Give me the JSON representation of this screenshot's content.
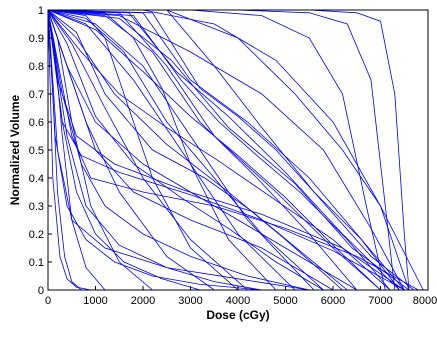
{
  "chart_data": {
    "type": "line",
    "title": "",
    "xlabel": "Dose (cGy)",
    "ylabel": "Normalized Volume",
    "xlim": [
      0,
      8000
    ],
    "ylim": [
      0,
      1
    ],
    "x_ticks": [
      "0",
      "1000",
      "2000",
      "3000",
      "4000",
      "5000",
      "6000",
      "7000",
      "8000"
    ],
    "y_ticks": [
      "0",
      "0.1",
      "0.2",
      "0.3",
      "0.4",
      "0.5",
      "0.6",
      "0.7",
      "0.8",
      "0.9",
      "1"
    ],
    "line_color": "#0000ff",
    "grid": false,
    "series": [
      {
        "x": [
          0,
          150,
          300,
          500,
          800,
          1200
        ],
        "y": [
          1,
          0.85,
          0.55,
          0.25,
          0.08,
          0
        ]
      },
      {
        "x": [
          0,
          100,
          200,
          350,
          500,
          700
        ],
        "y": [
          1,
          0.7,
          0.35,
          0.12,
          0.03,
          0
        ]
      },
      {
        "x": [
          0,
          200,
          500,
          900,
          1500,
          2200
        ],
        "y": [
          1,
          0.9,
          0.6,
          0.3,
          0.1,
          0
        ]
      },
      {
        "x": [
          0,
          300,
          800,
          1500,
          2500,
          3500
        ],
        "y": [
          1,
          0.85,
          0.6,
          0.35,
          0.12,
          0
        ]
      },
      {
        "x": [
          0,
          500,
          1200,
          2000,
          3000,
          4200
        ],
        "y": [
          1,
          0.88,
          0.65,
          0.4,
          0.18,
          0
        ]
      },
      {
        "x": [
          0,
          800,
          1800,
          2800,
          4000,
          5200
        ],
        "y": [
          1,
          0.95,
          0.75,
          0.5,
          0.2,
          0
        ]
      },
      {
        "x": [
          0,
          1000,
          2000,
          3000,
          4200,
          5600
        ],
        "y": [
          1,
          0.95,
          0.8,
          0.55,
          0.25,
          0
        ]
      },
      {
        "x": [
          0,
          800,
          1600,
          2500,
          3500,
          4500,
          5800
        ],
        "y": [
          1,
          0.97,
          0.85,
          0.6,
          0.4,
          0.2,
          0
        ]
      },
      {
        "x": [
          0,
          1200,
          2200,
          3200,
          4400,
          5500,
          6500
        ],
        "y": [
          1,
          0.98,
          0.85,
          0.6,
          0.4,
          0.2,
          0
        ]
      },
      {
        "x": [
          0,
          1500,
          2500,
          3500,
          4800,
          6000,
          7000
        ],
        "y": [
          1,
          0.99,
          0.8,
          0.55,
          0.35,
          0.15,
          0
        ]
      },
      {
        "x": [
          0,
          1700,
          2700,
          3800,
          5000,
          6200,
          7400
        ],
        "y": [
          1,
          0.99,
          0.78,
          0.62,
          0.42,
          0.2,
          0
        ]
      },
      {
        "x": [
          0,
          2000,
          3000,
          4200,
          5500,
          6500,
          7500
        ],
        "y": [
          1,
          0.99,
          0.75,
          0.6,
          0.4,
          0.2,
          0
        ]
      },
      {
        "x": [
          0,
          1500,
          2600,
          3800,
          5200,
          6400,
          7600
        ],
        "y": [
          1,
          0.97,
          0.82,
          0.58,
          0.38,
          0.15,
          0
        ]
      },
      {
        "x": [
          0,
          2500,
          3500,
          4500,
          5600,
          6800,
          7700
        ],
        "y": [
          1,
          1,
          0.8,
          0.58,
          0.35,
          0.12,
          0
        ]
      },
      {
        "x": [
          0,
          1000,
          2000,
          3000,
          4000,
          5000,
          6000,
          7000
        ],
        "y": [
          1,
          0.93,
          0.78,
          0.62,
          0.48,
          0.33,
          0.16,
          0
        ]
      },
      {
        "x": [
          0,
          600,
          1400,
          2500,
          3800,
          5000,
          6200
        ],
        "y": [
          1,
          0.9,
          0.7,
          0.52,
          0.35,
          0.18,
          0
        ]
      },
      {
        "x": [
          0,
          400,
          1000,
          2000,
          3500,
          5000,
          6500
        ],
        "y": [
          1,
          0.8,
          0.6,
          0.45,
          0.3,
          0.15,
          0
        ]
      },
      {
        "x": [
          0,
          300,
          600,
          1000,
          1600,
          2400,
          3200
        ],
        "y": [
          1,
          0.6,
          0.35,
          0.2,
          0.1,
          0.04,
          0
        ]
      },
      {
        "x": [
          0,
          200,
          500,
          1200,
          2500,
          4000,
          5500
        ],
        "y": [
          1,
          0.5,
          0.25,
          0.15,
          0.08,
          0.04,
          0
        ]
      },
      {
        "x": [
          0,
          500,
          1000,
          1800,
          3000,
          4500,
          6000
        ],
        "y": [
          1,
          0.75,
          0.5,
          0.35,
          0.25,
          0.15,
          0
        ]
      },
      {
        "x": [
          0,
          3000,
          4500,
          5500,
          6200,
          6700,
          7100
        ],
        "y": [
          1,
          1,
          0.98,
          0.9,
          0.7,
          0.3,
          0
        ]
      },
      {
        "x": [
          0,
          4000,
          5500,
          6300,
          6800,
          7100,
          7300
        ],
        "y": [
          1,
          1,
          0.99,
          0.95,
          0.75,
          0.3,
          0
        ]
      },
      {
        "x": [
          0,
          5500,
          6500,
          7000,
          7300,
          7500,
          7600
        ],
        "y": [
          1,
          1,
          0.99,
          0.96,
          0.7,
          0.2,
          0
        ]
      },
      {
        "x": [
          0,
          2000,
          3500,
          4800,
          6000,
          7000,
          7600
        ],
        "y": [
          1,
          1,
          0.95,
          0.82,
          0.6,
          0.3,
          0
        ]
      },
      {
        "x": [
          0,
          1500,
          3000,
          4500,
          5800,
          6800,
          7500
        ],
        "y": [
          1,
          0.98,
          0.85,
          0.7,
          0.5,
          0.22,
          0
        ]
      },
      {
        "x": [
          0,
          700,
          1500,
          2500,
          3600,
          4800,
          6000,
          7200
        ],
        "y": [
          1,
          0.85,
          0.7,
          0.58,
          0.46,
          0.32,
          0.18,
          0
        ]
      },
      {
        "x": [
          0,
          400,
          800,
          1500,
          2500,
          3500,
          4500
        ],
        "y": [
          1,
          0.55,
          0.3,
          0.16,
          0.08,
          0.03,
          0
        ]
      },
      {
        "x": [
          0,
          100,
          250,
          400,
          600,
          900,
          1300
        ],
        "y": [
          1,
          0.4,
          0.12,
          0.04,
          0.01,
          0,
          0
        ]
      },
      {
        "x": [
          0,
          800,
          1200,
          1600,
          2200,
          3000,
          4000
        ],
        "y": [
          1,
          0.98,
          0.9,
          0.7,
          0.4,
          0.15,
          0
        ]
      },
      {
        "x": [
          0,
          1200,
          1800,
          2400,
          3000,
          3800,
          4800
        ],
        "y": [
          1,
          0.99,
          0.9,
          0.72,
          0.45,
          0.18,
          0
        ]
      },
      {
        "x": [
          0,
          200,
          600,
          1400,
          2800,
          4500,
          6200,
          7500
        ],
        "y": [
          1,
          0.75,
          0.55,
          0.45,
          0.36,
          0.27,
          0.15,
          0
        ]
      },
      {
        "x": [
          0,
          300,
          700,
          1500,
          3000,
          4500,
          6000,
          7500
        ],
        "y": [
          1,
          0.6,
          0.48,
          0.42,
          0.34,
          0.25,
          0.14,
          0
        ]
      },
      {
        "x": [
          0,
          500,
          900,
          2000,
          3500,
          5000,
          6500,
          7800
        ],
        "y": [
          1,
          0.55,
          0.4,
          0.35,
          0.3,
          0.22,
          0.12,
          0
        ]
      },
      {
        "x": [
          0,
          2500,
          4000,
          5200,
          6200,
          7000,
          7600,
          7900
        ],
        "y": [
          1,
          1,
          0.9,
          0.7,
          0.5,
          0.3,
          0.1,
          0
        ]
      },
      {
        "x": [
          0,
          1800,
          2800,
          3600,
          4400,
          5300,
          6300,
          7200
        ],
        "y": [
          1,
          0.98,
          0.75,
          0.6,
          0.48,
          0.35,
          0.18,
          0
        ]
      },
      {
        "x": [
          0,
          2200,
          3200,
          4000,
          4800,
          5600,
          6600,
          7400
        ],
        "y": [
          1,
          0.99,
          0.72,
          0.62,
          0.5,
          0.35,
          0.18,
          0
        ]
      },
      {
        "x": [
          0,
          600,
          1200,
          2200,
          3300,
          4300,
          5300,
          6300
        ],
        "y": [
          1,
          0.92,
          0.7,
          0.5,
          0.4,
          0.28,
          0.14,
          0
        ]
      },
      {
        "x": [
          0,
          400,
          1000,
          1800,
          2800,
          3800,
          4800,
          5800
        ],
        "y": [
          1,
          0.88,
          0.62,
          0.45,
          0.33,
          0.22,
          0.1,
          0
        ]
      },
      {
        "x": [
          0,
          300,
          700,
          1200,
          2000,
          3000,
          4200,
          5500
        ],
        "y": [
          1,
          0.7,
          0.45,
          0.3,
          0.2,
          0.12,
          0.05,
          0
        ]
      },
      {
        "x": [
          0,
          150,
          400,
          800,
          1400,
          2200,
          3200,
          4500
        ],
        "y": [
          1,
          0.55,
          0.3,
          0.18,
          0.1,
          0.05,
          0.02,
          0
        ]
      }
    ]
  }
}
